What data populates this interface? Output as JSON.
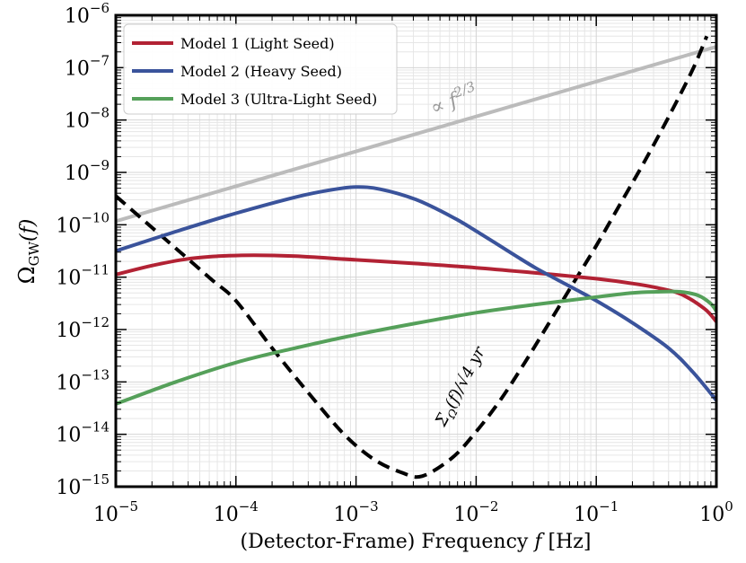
{
  "chart_data": {
    "type": "line",
    "title": "",
    "xlabel_prefix": "(Detector-Frame) Frequency",
    "xlabel_var": "f",
    "xlabel_unit": "[Hz]",
    "ylabel_main": "Ω",
    "ylabel_sub": "GW",
    "ylabel_arg": "(f)",
    "x_scale": "log",
    "y_scale": "log",
    "xlim_exp": [
      -5,
      0
    ],
    "ylim_exp": [
      -15,
      -6
    ],
    "x_tick_exponents": [
      -5,
      -4,
      -3,
      -2,
      -1,
      0
    ],
    "y_tick_exponents": [
      -15,
      -14,
      -13,
      -12,
      -11,
      -10,
      -9,
      -8,
      -7,
      -6
    ],
    "x_tick_labels": [
      "10",
      "10",
      "10",
      "10",
      "10",
      "10"
    ],
    "x_tick_sups": [
      "−5",
      "−4",
      "−3",
      "−2",
      "−1",
      "0"
    ],
    "y_tick_labels": [
      "10",
      "10",
      "10",
      "10",
      "10",
      "10",
      "10",
      "10",
      "10",
      "10"
    ],
    "y_tick_sups": [
      "−15",
      "−14",
      "−13",
      "−12",
      "−11",
      "−10",
      "−9",
      "−8",
      "−7",
      "−6"
    ],
    "grid": true,
    "legend_position": "top-left",
    "series": [
      {
        "name": "Model 1 (Light Seed)",
        "color": "#b22234",
        "style": "solid",
        "log10_f": [
          -5,
          -4.7,
          -4.4,
          -4.15,
          -3.85,
          -3.5,
          -3,
          -2.5,
          -2,
          -1.5,
          -1,
          -0.7,
          -0.5,
          -0.3,
          -0.1,
          0
        ],
        "log10_omega": [
          -10.95,
          -10.78,
          -10.65,
          -10.6,
          -10.58,
          -10.6,
          -10.67,
          -10.74,
          -10.82,
          -10.92,
          -11.03,
          -11.12,
          -11.2,
          -11.32,
          -11.6,
          -11.85
        ]
      },
      {
        "name": "Model 2 (Heavy Seed)",
        "color": "#3a539b",
        "style": "solid",
        "log10_f": [
          -5,
          -4.5,
          -4,
          -3.5,
          -3.2,
          -3,
          -2.8,
          -2.5,
          -2.2,
          -2,
          -1.7,
          -1.5,
          -1.2,
          -1,
          -0.7,
          -0.4,
          -0.2,
          0
        ],
        "log10_omega": [
          -10.5,
          -10.13,
          -9.78,
          -9.47,
          -9.33,
          -9.28,
          -9.32,
          -9.52,
          -9.85,
          -10.12,
          -10.55,
          -10.83,
          -11.2,
          -11.45,
          -11.87,
          -12.35,
          -12.8,
          -13.35
        ]
      },
      {
        "name": "Model 3 (Ultra-Light Seed)",
        "color": "#55a05a",
        "style": "solid",
        "log10_f": [
          -5,
          -4.5,
          -4,
          -3.5,
          -3,
          -2.5,
          -2,
          -1.5,
          -1,
          -0.7,
          -0.5,
          -0.3,
          -0.15,
          -0.05,
          0
        ],
        "log10_omega": [
          -13.42,
          -13.0,
          -12.63,
          -12.35,
          -12.1,
          -11.88,
          -11.68,
          -11.52,
          -11.38,
          -11.3,
          -11.28,
          -11.28,
          -11.35,
          -11.5,
          -11.65
        ]
      },
      {
        "name": "f^(2/3) reference",
        "color": "#bbbbbb",
        "style": "solid",
        "log10_f": [
          -5,
          0
        ],
        "log10_omega": [
          -9.93,
          -6.6
        ]
      },
      {
        "name": "sensitivity",
        "color": "#000000",
        "style": "dashed",
        "log10_f": [
          -5,
          -4.7,
          -4.5,
          -4.2,
          -4,
          -3.7,
          -3.4,
          -3.1,
          -2.85,
          -2.62,
          -2.45,
          -2.2,
          -2,
          -1.8,
          -1.6,
          -1.4,
          -1.2,
          -1,
          -0.8,
          -0.6,
          -0.4,
          -0.2,
          -0.08
        ],
        "log10_omega": [
          -9.45,
          -10.05,
          -10.45,
          -11.05,
          -11.45,
          -12.35,
          -13.2,
          -14.0,
          -14.48,
          -14.73,
          -14.8,
          -14.45,
          -13.95,
          -13.35,
          -12.65,
          -11.9,
          -11.15,
          -10.4,
          -9.6,
          -8.8,
          -7.95,
          -7.05,
          -6.4
        ]
      }
    ],
    "annotations": {
      "scaling": {
        "prefix": "∝ f",
        "sup": "2/3"
      },
      "sensitivity": {
        "text": "Σ",
        "sub": "Ω",
        "rest": "(f)/√4 yr"
      }
    }
  }
}
